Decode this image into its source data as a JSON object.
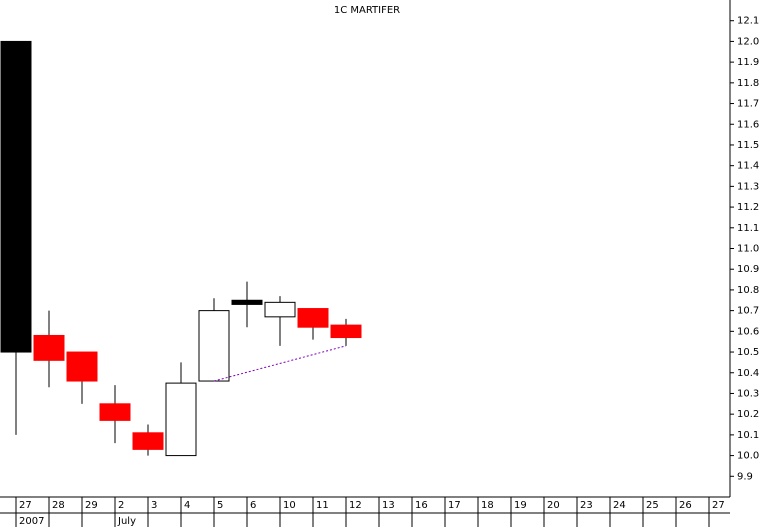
{
  "chart_data": {
    "type": "candlestick",
    "title": "1C MARTIFER",
    "categories": [
      "27",
      "28",
      "29",
      "2",
      "3",
      "4",
      "5",
      "6",
      "10",
      "11",
      "12",
      "13",
      "16",
      "17",
      "18",
      "19",
      "20",
      "23",
      "24",
      "25",
      "26",
      "27"
    ],
    "period_labels": [
      "2007",
      null,
      null,
      "July",
      null,
      null,
      null,
      null,
      null,
      null,
      null,
      null,
      null,
      null,
      null,
      null,
      null,
      null,
      null,
      null,
      null,
      null
    ],
    "open": [
      12.0,
      10.58,
      10.5,
      10.25,
      10.11,
      10.0,
      10.36,
      10.75,
      10.67,
      10.71,
      10.63,
      null,
      null,
      null,
      null,
      null,
      null,
      null,
      null,
      null,
      null,
      null
    ],
    "high": [
      12.0,
      10.7,
      10.5,
      10.34,
      10.15,
      10.45,
      10.76,
      10.84,
      10.77,
      10.71,
      10.66,
      null,
      null,
      null,
      null,
      null,
      null,
      null,
      null,
      null,
      null,
      null
    ],
    "low": [
      10.1,
      10.33,
      10.25,
      10.06,
      10.0,
      10.0,
      10.36,
      10.62,
      10.53,
      10.56,
      10.53,
      null,
      null,
      null,
      null,
      null,
      null,
      null,
      null,
      null,
      null,
      null
    ],
    "close": [
      10.5,
      10.46,
      10.36,
      10.17,
      10.03,
      10.35,
      10.7,
      10.73,
      10.74,
      10.62,
      10.57,
      null,
      null,
      null,
      null,
      null,
      null,
      null,
      null,
      null,
      null,
      null
    ],
    "colors": [
      "#000000",
      "#ff0000",
      "#ff0000",
      "#ff0000",
      "#ff0000",
      "#ffffff",
      "#ffffff",
      "#000000",
      "#ffffff",
      "#ff0000",
      "#ff0000",
      null,
      null,
      null,
      null,
      null,
      null,
      null,
      null,
      null,
      null,
      null
    ],
    "trendline": {
      "start_index": 6,
      "start_value": 10.36,
      "end_index": 10,
      "end_value": 10.53,
      "color": "#8000c0"
    },
    "ylim": [
      9.8,
      12.2
    ],
    "yticks": [
      9.9,
      {
        "value": 10.0,
        "label": "10.0"
      },
      10.1,
      10.2,
      10.3,
      10.4,
      10.5,
      10.6,
      10.7,
      10.8,
      10.9,
      {
        "value": 11.0,
        "label": "11.0"
      },
      11.1,
      11.2,
      11.3,
      11.4,
      11.5,
      11.6,
      11.7,
      11.8,
      11.9,
      {
        "value": 12.0,
        "label": "12.0"
      },
      12.1
    ]
  }
}
